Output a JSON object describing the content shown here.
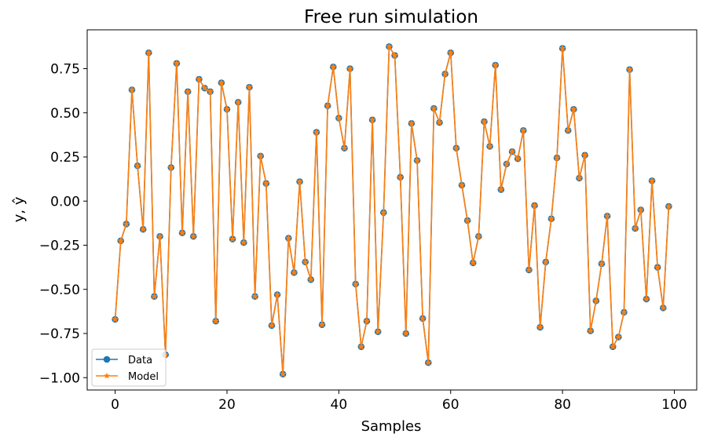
{
  "chart_data": {
    "type": "line",
    "title": "Free run simulation",
    "xlabel": "Samples",
    "ylabel": "y, ŷ",
    "xlim": [
      -5,
      104
    ],
    "ylim": [
      -1.07,
      0.97
    ],
    "xticks": [
      0,
      20,
      40,
      60,
      80,
      100
    ],
    "yticks": [
      -1.0,
      -0.75,
      -0.5,
      -0.25,
      0.0,
      0.25,
      0.5,
      0.75
    ],
    "xtick_labels": [
      "0",
      "20",
      "40",
      "60",
      "80",
      "100"
    ],
    "ytick_labels": [
      "−1.00",
      "−0.75",
      "−0.50",
      "−0.25",
      "0.00",
      "0.25",
      "0.50",
      "0.75"
    ],
    "legend_position": "lower-left",
    "grid": false,
    "x": [
      0,
      1,
      2,
      3,
      4,
      5,
      6,
      7,
      8,
      9,
      10,
      11,
      12,
      13,
      14,
      15,
      16,
      17,
      18,
      19,
      20,
      21,
      22,
      23,
      24,
      25,
      26,
      27,
      28,
      29,
      30,
      31,
      32,
      33,
      34,
      35,
      36,
      37,
      38,
      39,
      40,
      41,
      42,
      43,
      44,
      45,
      46,
      47,
      48,
      49,
      50,
      51,
      52,
      53,
      54,
      55,
      56,
      57,
      58,
      59,
      60,
      61,
      62,
      63,
      64,
      65,
      66,
      67,
      68,
      69,
      70,
      71,
      72,
      73,
      74,
      75,
      76,
      77,
      78,
      79,
      80,
      81,
      82,
      83,
      84,
      85,
      86,
      87,
      88,
      89,
      90,
      91,
      92,
      93,
      94,
      95,
      96,
      97,
      98,
      99
    ],
    "series": [
      {
        "name": "Data",
        "color": "#1f77b4",
        "marker": "circle",
        "values": [
          -0.67,
          -0.225,
          -0.13,
          0.63,
          0.2,
          -0.16,
          0.84,
          -0.54,
          -0.2,
          -0.87,
          0.19,
          0.78,
          -0.18,
          0.62,
          -0.2,
          0.69,
          0.64,
          0.62,
          -0.68,
          0.67,
          0.52,
          -0.215,
          0.56,
          -0.235,
          0.645,
          -0.54,
          0.255,
          0.1,
          -0.705,
          -0.53,
          -0.98,
          -0.21,
          -0.405,
          0.11,
          -0.345,
          -0.445,
          0.39,
          -0.7,
          0.54,
          0.76,
          0.47,
          0.3,
          0.75,
          -0.47,
          -0.825,
          -0.68,
          0.46,
          -0.74,
          -0.065,
          0.875,
          0.825,
          0.135,
          -0.75,
          0.44,
          0.23,
          -0.665,
          -0.915,
          0.525,
          0.445,
          0.72,
          0.84,
          0.3,
          0.09,
          -0.11,
          -0.35,
          -0.2,
          0.45,
          0.31,
          0.77,
          0.065,
          0.21,
          0.28,
          0.24,
          0.4,
          -0.39,
          -0.025,
          -0.715,
          -0.345,
          -0.1,
          0.245,
          0.865,
          0.4,
          0.52,
          0.13,
          0.26,
          -0.735,
          -0.565,
          -0.355,
          -0.085,
          -0.825,
          -0.77,
          -0.63,
          0.745,
          -0.155,
          -0.05,
          -0.555,
          0.115,
          -0.375,
          -0.605,
          -0.03
        ]
      },
      {
        "name": "Model",
        "color": "#ff7f0e",
        "marker": "star",
        "values": [
          -0.67,
          -0.225,
          -0.13,
          0.63,
          0.2,
          -0.16,
          0.84,
          -0.54,
          -0.2,
          -0.87,
          0.19,
          0.78,
          -0.18,
          0.62,
          -0.2,
          0.69,
          0.64,
          0.62,
          -0.68,
          0.67,
          0.52,
          -0.215,
          0.56,
          -0.235,
          0.645,
          -0.54,
          0.255,
          0.1,
          -0.705,
          -0.53,
          -0.98,
          -0.21,
          -0.405,
          0.11,
          -0.345,
          -0.445,
          0.39,
          -0.7,
          0.54,
          0.76,
          0.47,
          0.3,
          0.75,
          -0.47,
          -0.825,
          -0.68,
          0.46,
          -0.74,
          -0.065,
          0.875,
          0.825,
          0.135,
          -0.75,
          0.44,
          0.23,
          -0.665,
          -0.915,
          0.525,
          0.445,
          0.72,
          0.84,
          0.3,
          0.09,
          -0.11,
          -0.35,
          -0.2,
          0.45,
          0.31,
          0.77,
          0.065,
          0.21,
          0.28,
          0.24,
          0.4,
          -0.39,
          -0.025,
          -0.715,
          -0.345,
          -0.1,
          0.245,
          0.865,
          0.4,
          0.52,
          0.13,
          0.26,
          -0.735,
          -0.565,
          -0.355,
          -0.085,
          -0.825,
          -0.77,
          -0.63,
          0.745,
          -0.155,
          -0.05,
          -0.555,
          0.115,
          -0.375,
          -0.605,
          -0.03
        ]
      }
    ]
  }
}
